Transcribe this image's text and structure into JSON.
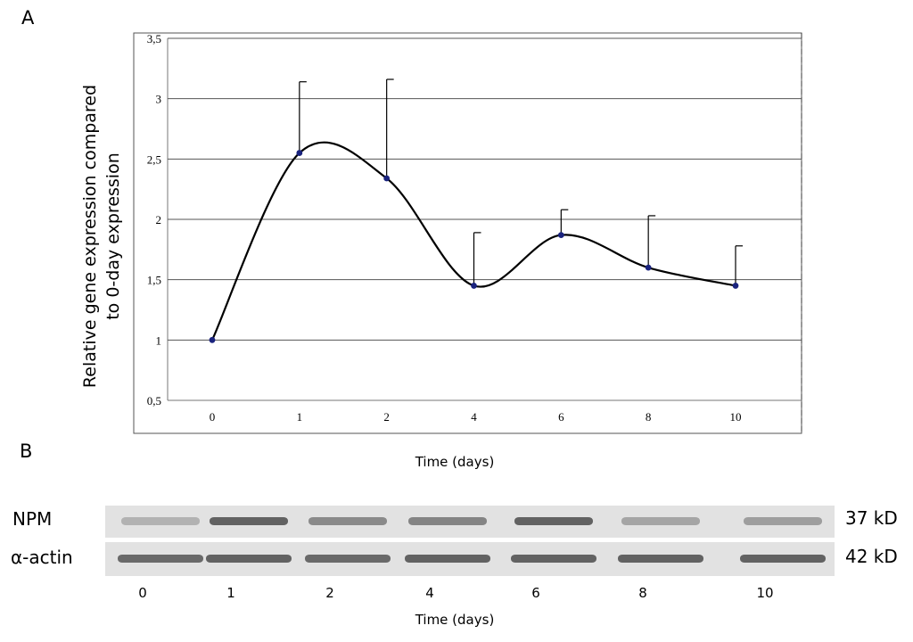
{
  "panel_a_label": "A",
  "panel_b_label": "B",
  "chart_data": {
    "type": "line",
    "title": "",
    "xlabel": "Time (days)",
    "ylabel": "Relative gene expression compared to 0-day expression",
    "ylabel_lines": [
      "Relative gene expression compared",
      "to 0-day expression"
    ],
    "categories": [
      "0",
      "1",
      "2",
      "4",
      "6",
      "8",
      "10"
    ],
    "values": [
      1.0,
      2.55,
      2.34,
      1.45,
      1.87,
      1.6,
      1.45
    ],
    "error_upper": [
      1.0,
      3.14,
      3.16,
      1.89,
      2.08,
      2.03,
      1.78
    ],
    "ylim": [
      0.5,
      3.5
    ],
    "yticks": [
      "0,5",
      "1",
      "1,5",
      "2",
      "2,5",
      "3",
      "3,5"
    ],
    "grid": true,
    "smoothed": true,
    "marker_color": "#1a237e",
    "line_color": "#000000"
  },
  "blot": {
    "xlabel": "Time (days)",
    "lanes": [
      "0",
      "1",
      "2",
      "4",
      "6",
      "8",
      "10"
    ],
    "rows": [
      {
        "label": "NPM",
        "size": "37 kD",
        "intensities": [
          0.25,
          0.85,
          0.55,
          0.6,
          0.85,
          0.35,
          0.4
        ]
      },
      {
        "label": "α-actin",
        "size": "42 kD",
        "intensities": [
          0.8,
          0.85,
          0.8,
          0.85,
          0.85,
          0.85,
          0.85
        ]
      }
    ]
  }
}
